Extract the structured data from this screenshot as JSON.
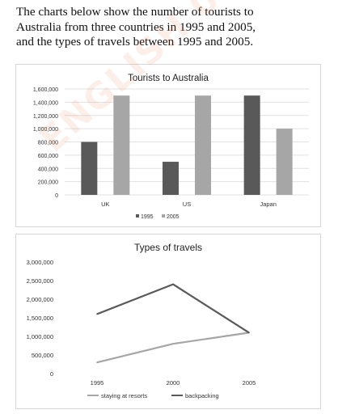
{
  "intro": {
    "line1": "The charts below show the number of tourists to",
    "line2": "Australia from three countries in 1995 and 2005,",
    "line3": "and the types of travels between 1995 and 2005."
  },
  "watermark": "ENGLISH 0932060606",
  "chart_data": [
    {
      "type": "bar",
      "title": "Tourists to Australia",
      "categories": [
        "UK",
        "US",
        "Japan"
      ],
      "series": [
        {
          "name": "1995",
          "values": [
            800000,
            500000,
            1500000
          ],
          "color": "#595959"
        },
        {
          "name": "2005",
          "values": [
            1500000,
            1500000,
            1000000
          ],
          "color": "#a6a6a6"
        }
      ],
      "ylim": [
        0,
        1600000
      ],
      "yticks": [
        0,
        200000,
        400000,
        600000,
        800000,
        1000000,
        1200000,
        1400000,
        1600000
      ],
      "ytick_labels": [
        "0",
        "200,000",
        "400,000",
        "600,000",
        "800,000",
        "1,000,000",
        "1,200,000",
        "1,400,000",
        "1,600,000"
      ],
      "grid": true,
      "legend": "bottom"
    },
    {
      "type": "line",
      "title": "Types of travels",
      "x": [
        "1995",
        "2000",
        "2005"
      ],
      "series": [
        {
          "name": "staying at resorts",
          "values": [
            300000,
            800000,
            1100000
          ],
          "color": "#a6a6a6"
        },
        {
          "name": "backpacking",
          "values": [
            1600000,
            2400000,
            1100000
          ],
          "color": "#595959"
        }
      ],
      "ylim": [
        0,
        3000000
      ],
      "yticks": [
        0,
        500000,
        1000000,
        1500000,
        2000000,
        2500000,
        3000000
      ],
      "ytick_labels": [
        "0",
        "500,000",
        "1,000,000",
        "1,500,000",
        "2,000,000",
        "2,500,000",
        "3,000,000"
      ],
      "grid": false,
      "legend": "bottom"
    }
  ]
}
